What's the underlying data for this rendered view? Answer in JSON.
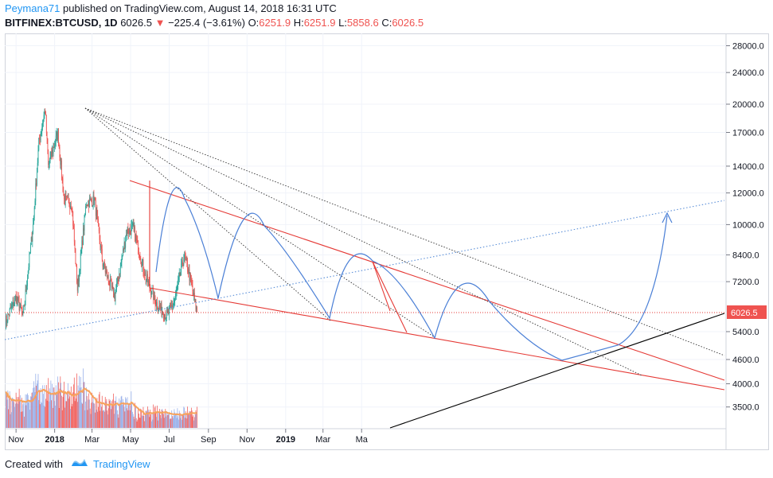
{
  "header": {
    "author": "Peymana71",
    "published_text": "published on TradingView.com, August 14, 2018 16:31 UTC",
    "symbol": "BITFINEX:BTCUSD, 1D",
    "last_price": "6026.5",
    "change_arrow": "▼",
    "change": "−225.4 (−3.61%)",
    "open_label": "O:",
    "open_value": "6251.9",
    "high_label": "H:",
    "high_value": "6251.9",
    "low_label": "L:",
    "low_value": "5858.6",
    "close_label": "C:",
    "close_value": "6026.5"
  },
  "footer": {
    "created_with": "Created with",
    "brand": "TradingView"
  },
  "colors": {
    "up": "#26a69a",
    "down": "#ef5350",
    "trend_red": "#e53935",
    "trend_black": "#000000",
    "projection_blue": "#4a7fd6",
    "dotted_blue": "#5b8fd8",
    "ma_orange": "#f7a35c",
    "vol_blue": "#8fa9e8",
    "vol_red": "#ef5350",
    "price_tag": "#ef5350"
  },
  "chart_data": {
    "type": "candlestick",
    "x_tick_labels": [
      "Nov",
      "2018",
      "Mar",
      "May",
      "Jul",
      "Sep",
      "Nov",
      "2019",
      "Mar",
      "Ma"
    ],
    "y_tick_labels": [
      "28000.0",
      "24000.0",
      "20000.0",
      "17000.0",
      "14000.0",
      "12000.0",
      "10000.0",
      "8400.0",
      "7200.0",
      "6026.5",
      "5400.0",
      "4600.0",
      "4000.0",
      "3500.0"
    ],
    "y_scale": "log",
    "last_price_label": "6026.5",
    "price_anchors": [
      {
        "date": "2017-10-15",
        "close": 5700
      },
      {
        "date": "2017-11-01",
        "close": 6600
      },
      {
        "date": "2017-11-12",
        "close": 5900
      },
      {
        "date": "2017-11-28",
        "close": 10000
      },
      {
        "date": "2017-12-07",
        "close": 16000
      },
      {
        "date": "2017-12-17",
        "close": 19500
      },
      {
        "date": "2017-12-22",
        "close": 14000
      },
      {
        "date": "2018-01-06",
        "close": 17000
      },
      {
        "date": "2018-01-16",
        "close": 11500
      },
      {
        "date": "2018-01-28",
        "close": 11300
      },
      {
        "date": "2018-02-06",
        "close": 6900
      },
      {
        "date": "2018-02-20",
        "close": 11400
      },
      {
        "date": "2018-03-05",
        "close": 11500
      },
      {
        "date": "2018-03-18",
        "close": 8000
      },
      {
        "date": "2018-04-01",
        "close": 6900
      },
      {
        "date": "2018-04-06",
        "close": 6600
      },
      {
        "date": "2018-04-25",
        "close": 9600
      },
      {
        "date": "2018-05-05",
        "close": 9800
      },
      {
        "date": "2018-05-25",
        "close": 7400
      },
      {
        "date": "2018-06-12",
        "close": 6300
      },
      {
        "date": "2018-06-28",
        "close": 5900
      },
      {
        "date": "2018-07-10",
        "close": 6500
      },
      {
        "date": "2018-07-24",
        "close": 8300
      },
      {
        "date": "2018-07-31",
        "close": 7700
      },
      {
        "date": "2018-08-14",
        "close": 6026.5
      }
    ]
  }
}
